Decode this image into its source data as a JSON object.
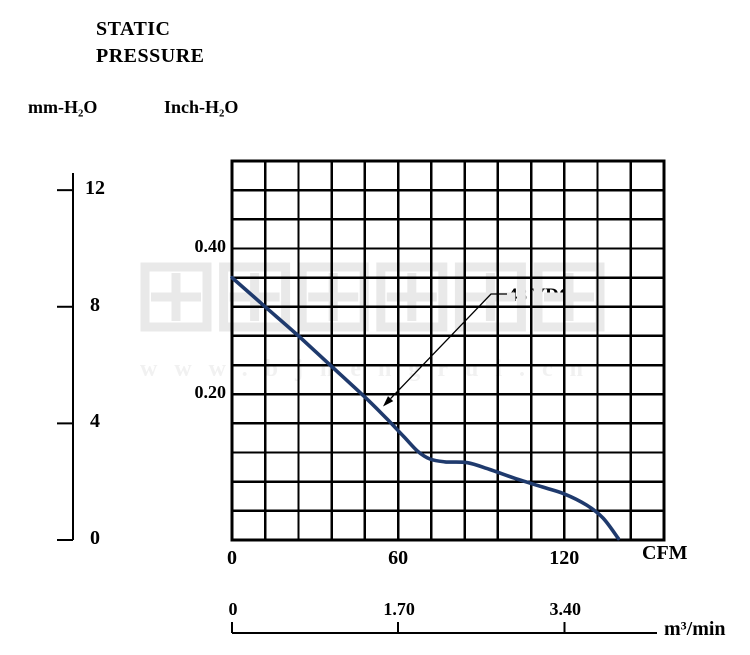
{
  "header": {
    "title_line1": "STATIC",
    "title_line2": "PRESSURE",
    "unit_left": "mm-H₂O",
    "unit_right": "Inch-H₂O"
  },
  "watermark": {
    "cjk_text": "恒瑞宏晟机电",
    "url_text": "www.bjhengrui.cn"
  },
  "chart_data": {
    "type": "line",
    "title": "Static pressure vs airflow performance curve",
    "series": [
      {
        "name": "48 VDC",
        "color": "#1f3a6d",
        "x_unit": "CFM",
        "y_unit": "mm-H2O",
        "points": [
          [
            0,
            9.0
          ],
          [
            12,
            8.0
          ],
          [
            24,
            7.0
          ],
          [
            36,
            5.95
          ],
          [
            48,
            4.9
          ],
          [
            56,
            4.15
          ],
          [
            62,
            3.55
          ],
          [
            67,
            3.05
          ],
          [
            71.5,
            2.78
          ],
          [
            77,
            2.68
          ],
          [
            85,
            2.65
          ],
          [
            93,
            2.42
          ],
          [
            102,
            2.12
          ],
          [
            112,
            1.82
          ],
          [
            120,
            1.58
          ],
          [
            128,
            1.2
          ],
          [
            134,
            0.75
          ],
          [
            139.5,
            0.05
          ]
        ]
      }
    ],
    "x_axis_primary": {
      "unit": "CFM",
      "ticks": [
        0,
        60,
        120
      ],
      "range": [
        0,
        156
      ]
    },
    "x_axis_secondary": {
      "unit": "m³/min",
      "ticks": [
        {
          "label": "0",
          "value": 0
        },
        {
          "label": "1.70",
          "value": 1.7
        },
        {
          "label": "3.40",
          "value": 3.4
        }
      ]
    },
    "y_axis_left": {
      "unit": "mm-H₂O",
      "ticks": [
        12,
        8,
        4,
        0
      ],
      "range": [
        0,
        13
      ]
    },
    "y_axis_inner": {
      "unit": "Inch-H₂O",
      "ticks": [
        {
          "label": "0.40",
          "mm_equiv": 10
        },
        {
          "label": "0.20",
          "mm_equiv": 5
        }
      ]
    },
    "grid": {
      "cols": 13,
      "rows": 13,
      "line_color": "#000000",
      "legend": "off"
    },
    "annotation": {
      "label": "48 VDC"
    }
  }
}
